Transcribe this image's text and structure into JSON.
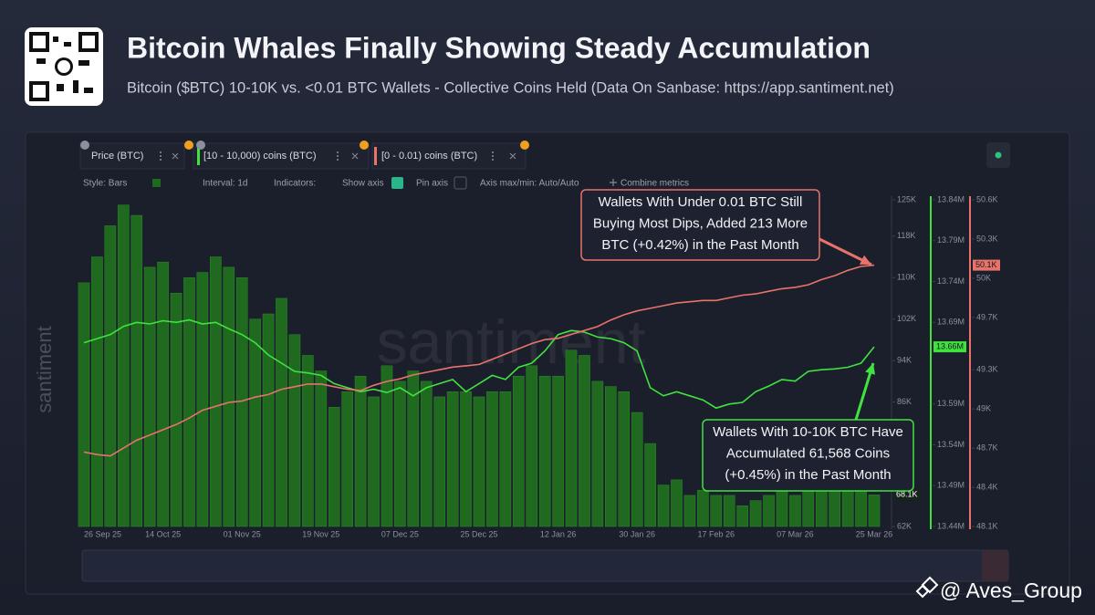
{
  "header": {
    "title": "Bitcoin Whales Finally Showing Steady Accumulation",
    "subtitle": "Bitcoin ($BTC) 10-10K vs. <0.01 BTC Wallets - Collective Coins Held (Data On Sanbase: https://app.santiment.net)"
  },
  "toolbar": {
    "options": [
      "Style: Bars",
      "Interval: 1d",
      "Indicators:",
      "Show axis",
      "Pin axis",
      "Axis max/min: Auto/Auto",
      "Combine metrics"
    ]
  },
  "watermark": "santiment",
  "credit": "@ Aves_Group",
  "chart_data": {
    "type": "combo",
    "categories": [
      "26 Sep 25",
      null,
      null,
      null,
      null,
      null,
      "14 Oct 25",
      null,
      null,
      null,
      null,
      null,
      "01 Nov 25",
      null,
      null,
      null,
      null,
      null,
      "19 Nov 25",
      null,
      null,
      null,
      null,
      null,
      "07 Dec 25",
      null,
      null,
      null,
      null,
      null,
      "25 Dec 25",
      null,
      null,
      null,
      null,
      null,
      "12 Jan 26",
      null,
      null,
      null,
      null,
      null,
      "30 Jan 26",
      null,
      null,
      null,
      null,
      null,
      "17 Feb 26",
      null,
      null,
      null,
      null,
      null,
      "07 Mar 26",
      null,
      null,
      null,
      null,
      null,
      "25 Mar 26"
    ],
    "series": [
      {
        "name": "Price (BTC)",
        "type": "bar",
        "axis": "y",
        "color": "#1f6a1f",
        "values": [
          109000,
          114000,
          120000,
          124000,
          122000,
          112000,
          113000,
          107000,
          110000,
          111000,
          114000,
          112000,
          110000,
          102000,
          103000,
          106000,
          99000,
          95000,
          92000,
          85000,
          88000,
          91000,
          87000,
          93000,
          90000,
          92000,
          90000,
          87000,
          88000,
          88000,
          87000,
          88000,
          88000,
          91000,
          93000,
          91000,
          91000,
          96000,
          95000,
          90000,
          89000,
          88000,
          84000,
          78000,
          70000,
          71000,
          68000,
          69000,
          68000,
          68000,
          66000,
          67000,
          68000,
          71000,
          68000,
          70000,
          71000,
          73000,
          71000,
          69000,
          68100
        ],
        "value_labels": [
          null,
          null,
          null,
          null,
          null,
          null,
          null,
          null,
          null,
          null,
          null,
          null,
          null,
          null,
          null,
          null,
          null,
          null,
          null,
          null,
          null,
          null,
          null,
          null,
          null,
          null,
          null,
          null,
          null,
          null,
          null,
          null,
          null,
          null,
          null,
          null,
          null,
          null,
          null,
          null,
          null,
          null,
          null,
          null,
          null,
          null,
          null,
          null,
          null,
          null,
          null,
          null,
          null,
          null,
          null,
          null,
          null,
          null,
          null,
          null,
          "68.1K"
        ]
      },
      {
        "name": "[10 - 10,000) coins (BTC)",
        "type": "line",
        "axis": "y2",
        "color": "#3fe33f",
        "values": [
          13665000,
          13670000,
          13675000,
          13685000,
          13690000,
          13688000,
          13692000,
          13690000,
          13693000,
          13688000,
          13690000,
          13682000,
          13675000,
          13665000,
          13650000,
          13640000,
          13630000,
          13628000,
          13625000,
          13615000,
          13610000,
          13605000,
          13608000,
          13604000,
          13610000,
          13600000,
          13610000,
          13615000,
          13620000,
          13605000,
          13615000,
          13625000,
          13620000,
          13635000,
          13640000,
          13655000,
          13675000,
          13680000,
          13678000,
          13672000,
          13670000,
          13665000,
          13655000,
          13610000,
          13600000,
          13605000,
          13600000,
          13595000,
          13585000,
          13590000,
          13592000,
          13605000,
          13612000,
          13620000,
          13618000,
          13630000,
          13632000,
          13633000,
          13635000,
          13640000,
          13660000
        ],
        "value_labels": [
          null,
          null,
          null,
          null,
          null,
          null,
          null,
          null,
          null,
          null,
          null,
          null,
          null,
          null,
          null,
          null,
          null,
          null,
          null,
          null,
          null,
          null,
          null,
          null,
          null,
          null,
          null,
          null,
          null,
          null,
          null,
          null,
          null,
          null,
          null,
          null,
          null,
          null,
          null,
          null,
          null,
          null,
          null,
          null,
          null,
          null,
          null,
          null,
          null,
          null,
          null,
          null,
          null,
          null,
          null,
          null,
          null,
          null,
          null,
          null,
          "13.66M"
        ]
      },
      {
        "name": "[0 - 0.01) coins (BTC)",
        "type": "line",
        "axis": "y3",
        "color": "#e8736b",
        "values": [
          48670,
          48650,
          48640,
          48700,
          48760,
          48800,
          48840,
          48880,
          48930,
          48990,
          49020,
          49050,
          49060,
          49090,
          49110,
          49150,
          49170,
          49190,
          49190,
          49170,
          49150,
          49140,
          49180,
          49210,
          49230,
          49260,
          49280,
          49300,
          49320,
          49330,
          49340,
          49380,
          49420,
          49460,
          49500,
          49530,
          49540,
          49570,
          49600,
          49630,
          49680,
          49720,
          49750,
          49770,
          49790,
          49810,
          49820,
          49830,
          49830,
          49850,
          49870,
          49880,
          49900,
          49920,
          49930,
          49950,
          49990,
          50020,
          50060,
          50090,
          50100
        ],
        "value_labels": [
          null,
          null,
          null,
          null,
          null,
          null,
          null,
          null,
          null,
          null,
          null,
          null,
          null,
          null,
          null,
          null,
          null,
          null,
          null,
          null,
          null,
          null,
          null,
          null,
          null,
          null,
          null,
          null,
          null,
          null,
          null,
          null,
          null,
          null,
          null,
          null,
          null,
          null,
          null,
          null,
          null,
          null,
          null,
          null,
          null,
          null,
          null,
          null,
          null,
          null,
          null,
          null,
          null,
          null,
          null,
          null,
          null,
          null,
          null,
          null,
          "50.1K"
        ]
      }
    ],
    "ylim": [
      62000,
      125000
    ],
    "yticks": [
      {
        "value": 125000,
        "label": "125K"
      },
      {
        "value": 118000,
        "label": "118K"
      },
      {
        "value": 110000,
        "label": "110K"
      },
      {
        "value": 102000,
        "label": "102K"
      },
      {
        "value": 94000,
        "label": "94K"
      },
      {
        "value": 86000,
        "label": "86K"
      },
      {
        "value": 62000,
        "label": "62K"
      }
    ],
    "y2lim": [
      13440000,
      13840000
    ],
    "y2ticks": [
      {
        "value": 13840000,
        "label": "13.84M"
      },
      {
        "value": 13790000,
        "label": "13.79M"
      },
      {
        "value": 13740000,
        "label": "13.74M"
      },
      {
        "value": 13690000,
        "label": "13.69M"
      },
      {
        "value": 13590000,
        "label": "13.59M"
      },
      {
        "value": 13540000,
        "label": "13.54M"
      },
      {
        "value": 13490000,
        "label": "13.49M"
      },
      {
        "value": 13440000,
        "label": "13.44M"
      }
    ],
    "y3lim": [
      48100,
      50600
    ],
    "y3ticks": [
      {
        "value": 50600,
        "label": "50.6K"
      },
      {
        "value": 50300,
        "label": "50.3K"
      },
      {
        "value": 50000,
        "label": "50K"
      },
      {
        "value": 49700,
        "label": "49.7K"
      },
      {
        "value": 49300,
        "label": "49.3K"
      },
      {
        "value": 49000,
        "label": "49K"
      },
      {
        "value": 48700,
        "label": "48.7K"
      },
      {
        "value": 48400,
        "label": "48.4K"
      },
      {
        "value": 48100,
        "label": "48.1K"
      }
    ],
    "annotations": [
      {
        "lines": [
          "Wallets With Under 0.01 BTC Still",
          "Buying Most Dips, Added 213 More",
          "BTC (+0.42%) in the Past Month"
        ],
        "color": "#e8736b"
      },
      {
        "lines": [
          "Wallets With 10-10K BTC Have",
          "Accumulated 61,568 Coins",
          "(+0.45%) in the Past Month"
        ],
        "color": "#3fe33f"
      }
    ]
  }
}
